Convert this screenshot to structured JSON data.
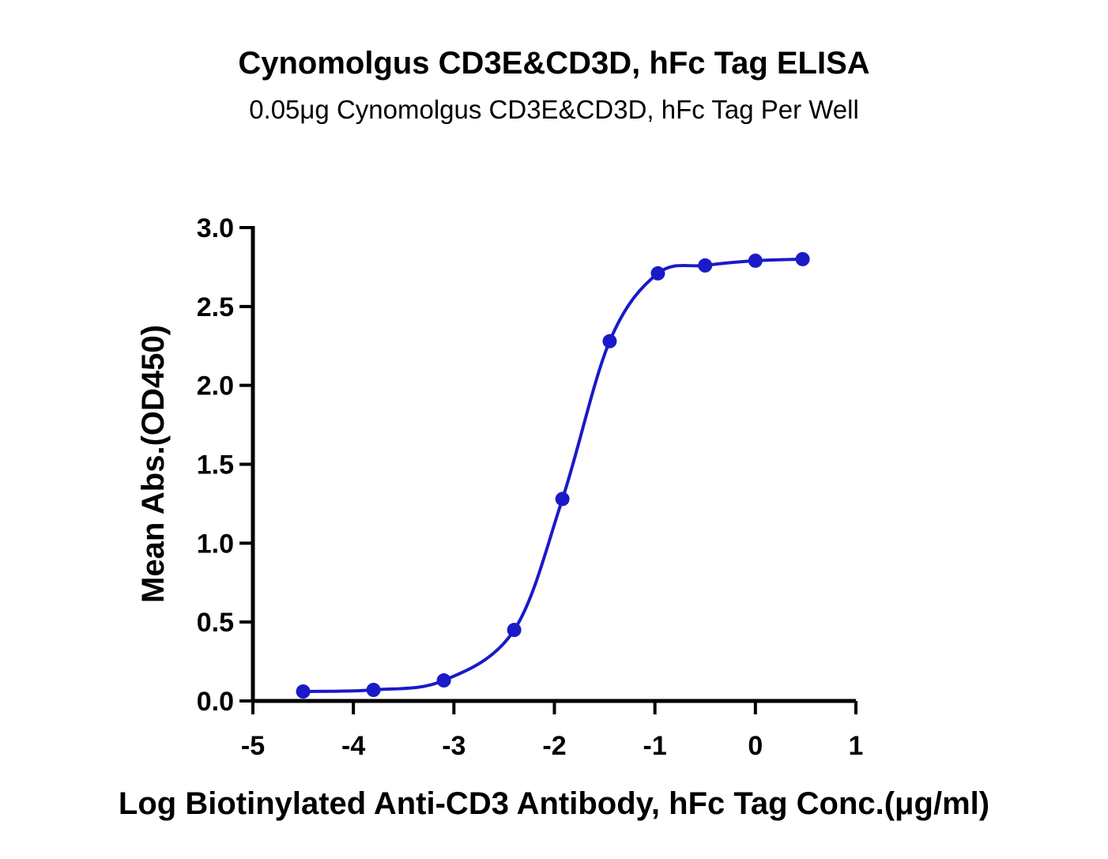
{
  "chart_data": {
    "type": "scatter",
    "title": "Cynomolgus CD3E&CD3D, hFc Tag ELISA",
    "subtitle": "0.05μg Cynomolgus CD3E&CD3D, hFc Tag Per Well",
    "xlabel": "Log Biotinylated Anti-CD3 Antibody, hFc Tag Conc.(μg/ml)",
    "ylabel": "Mean Abs.(OD450)",
    "xlim": [
      -5,
      1
    ],
    "ylim": [
      0,
      3.0
    ],
    "x_ticks": [
      -5,
      -4,
      -3,
      -2,
      -1,
      0,
      1
    ],
    "x_tick_labels": [
      "-5",
      "-4",
      "-3",
      "-2",
      "-1",
      "0",
      "1"
    ],
    "y_ticks": [
      0,
      0.5,
      1.0,
      1.5,
      2.0,
      2.5,
      3.0
    ],
    "y_tick_labels": [
      "0.0",
      "0.5",
      "1.0",
      "1.5",
      "2.0",
      "2.5",
      "3.0"
    ],
    "grid": false,
    "color": "#1a1ac8",
    "series": [
      {
        "x": [
          -4.5,
          -3.8,
          -3.1,
          -2.4,
          -1.92,
          -1.45,
          -0.97,
          -0.5,
          0.0,
          0.47
        ],
        "y": [
          0.06,
          0.07,
          0.13,
          0.45,
          1.28,
          2.28,
          2.71,
          2.76,
          2.79,
          2.8
        ],
        "fit": "4PL sigmoid curve"
      }
    ]
  }
}
